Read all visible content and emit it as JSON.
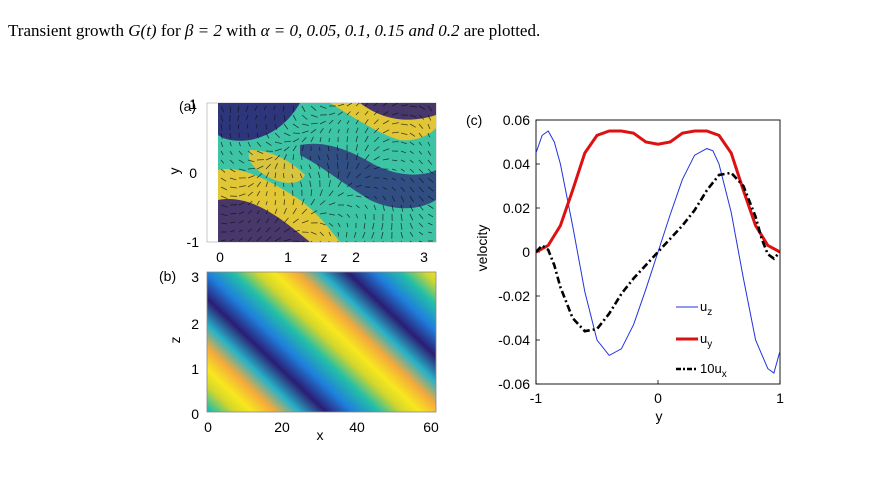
{
  "caption": {
    "prefix": "Transient growth ",
    "g_of_t": "G(t)",
    "for_beta": " for ",
    "beta_eq": "β = 2",
    "with": " with ",
    "alpha_eq": "α = 0, 0.05, 0.1, 0.15 and 0.2",
    "suffix": " are plotted."
  },
  "panels": {
    "a": {
      "label": "(a)",
      "xlabel": "z",
      "ylabel": "y",
      "xticks": [
        "0",
        "1",
        "2",
        "3"
      ],
      "yticks": [
        "1",
        "0",
        "-1"
      ]
    },
    "b": {
      "label": "(b)",
      "xlabel": "x",
      "ylabel": "z",
      "xticks": [
        "0",
        "20",
        "40",
        "60"
      ],
      "yticks": [
        "3",
        "2",
        "1",
        "0"
      ]
    },
    "c": {
      "label": "(c)",
      "xlabel": "y",
      "ylabel": "velocity",
      "xticks": [
        "-1",
        "0",
        "1"
      ],
      "yticks": [
        "0.06",
        "0.04",
        "0.02",
        "0",
        "-0.02",
        "-0.04",
        "-0.06"
      ],
      "legend": [
        "u_z",
        "u_y",
        "10u_x"
      ]
    }
  },
  "colors": {
    "uz": "#2233dd",
    "uy": "#dd1111",
    "ux": "#000000",
    "dark": "#2b1d73",
    "yellow": "#f7e81e"
  },
  "chart_data": [
    {
      "type": "line",
      "title": "",
      "xlabel": "y",
      "ylabel": "velocity",
      "xlim": [
        -1,
        1
      ],
      "ylim": [
        -0.06,
        0.06
      ],
      "legend_position": "bottom-right",
      "series": [
        {
          "name": "u_z",
          "x": [
            -1,
            -0.95,
            -0.9,
            -0.85,
            -0.8,
            -0.7,
            -0.6,
            -0.5,
            -0.4,
            -0.3,
            -0.2,
            -0.1,
            0,
            0.1,
            0.2,
            0.3,
            0.4,
            0.45,
            0.5,
            0.6,
            0.7,
            0.8,
            0.9,
            0.95,
            1
          ],
          "y": [
            0.045,
            0.053,
            0.055,
            0.05,
            0.04,
            0.012,
            -0.018,
            -0.04,
            -0.047,
            -0.044,
            -0.033,
            -0.017,
            0,
            0.017,
            0.033,
            0.044,
            0.047,
            0.046,
            0.04,
            0.018,
            -0.012,
            -0.04,
            -0.053,
            -0.055,
            -0.045
          ]
        },
        {
          "name": "u_y",
          "x": [
            -1,
            -0.9,
            -0.8,
            -0.7,
            -0.6,
            -0.5,
            -0.4,
            -0.3,
            -0.2,
            -0.1,
            0,
            0.1,
            0.2,
            0.3,
            0.4,
            0.5,
            0.6,
            0.7,
            0.8,
            0.9,
            1
          ],
          "y": [
            0,
            0.003,
            0.012,
            0.028,
            0.045,
            0.053,
            0.055,
            0.055,
            0.054,
            0.05,
            0.049,
            0.05,
            0.054,
            0.055,
            0.055,
            0.053,
            0.045,
            0.028,
            0.012,
            0.003,
            0
          ],
          "color": "#dd1111"
        },
        {
          "name": "10u_x",
          "x": [
            -1,
            -0.95,
            -0.9,
            -0.85,
            -0.8,
            -0.7,
            -0.6,
            -0.5,
            -0.4,
            -0.3,
            -0.2,
            -0.1,
            0,
            0.1,
            0.2,
            0.3,
            0.4,
            0.5,
            0.6,
            0.7,
            0.8,
            0.85,
            0.9,
            0.95,
            1
          ],
          "y": [
            0,
            0.003,
            0.001,
            -0.006,
            -0.016,
            -0.03,
            -0.036,
            -0.035,
            -0.028,
            -0.019,
            -0.012,
            -0.006,
            0,
            0.006,
            0.012,
            0.019,
            0.028,
            0.035,
            0.036,
            0.03,
            0.016,
            0.006,
            -0.001,
            -0.003,
            0
          ],
          "color": "#000000"
        }
      ]
    }
  ]
}
